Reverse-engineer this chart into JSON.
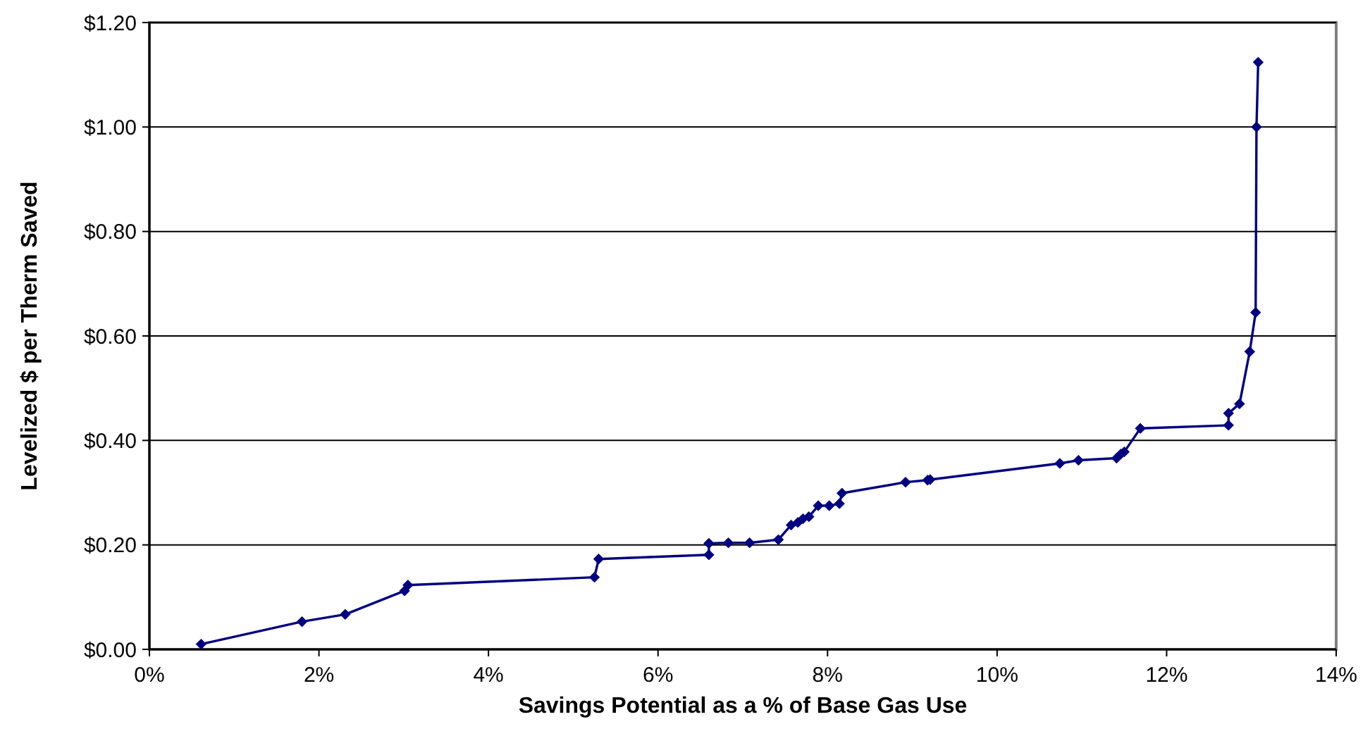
{
  "chart_data": {
    "type": "line",
    "xlabel": "Savings Potential as a % of Base Gas Use",
    "ylabel": "Levelized $ per Therm Saved",
    "x": [
      0.61,
      1.8,
      2.31,
      3.01,
      3.05,
      5.25,
      5.3,
      6.6,
      6.6,
      6.83,
      7.08,
      7.42,
      7.57,
      7.65,
      7.71,
      7.78,
      7.89,
      8.02,
      8.14,
      8.17,
      8.92,
      9.18,
      9.21,
      10.74,
      10.96,
      11.41,
      11.46,
      11.5,
      11.69,
      12.73,
      12.73,
      12.86,
      12.98,
      13.05,
      13.06,
      13.08
    ],
    "series": [
      {
        "color": "#000080",
        "values": [
          0.01,
          0.053,
          0.067,
          0.112,
          0.123,
          0.138,
          0.173,
          0.181,
          0.203,
          0.204,
          0.204,
          0.21,
          0.238,
          0.243,
          0.25,
          0.254,
          0.275,
          0.275,
          0.279,
          0.299,
          0.32,
          0.324,
          0.325,
          0.356,
          0.362,
          0.366,
          0.374,
          0.378,
          0.423,
          0.429,
          0.452,
          0.47,
          0.57,
          0.645,
          1.0,
          1.124
        ]
      }
    ],
    "xlim": [
      0,
      14
    ],
    "xticks": [
      {
        "value": 0,
        "label": "0%"
      },
      {
        "value": 2,
        "label": "2%"
      },
      {
        "value": 4,
        "label": "4%"
      },
      {
        "value": 6,
        "label": "6%"
      },
      {
        "value": 8,
        "label": "8%"
      },
      {
        "value": 10,
        "label": "10%"
      },
      {
        "value": 12,
        "label": "12%"
      },
      {
        "value": 14,
        "label": "14%"
      }
    ],
    "ylim": [
      0,
      1.2
    ],
    "yticks": [
      {
        "value": 0,
        "label": "$0.00"
      },
      {
        "value": 0.2,
        "label": "$0.20"
      },
      {
        "value": 0.4,
        "label": "$0.40"
      },
      {
        "value": 0.6,
        "label": "$0.60"
      },
      {
        "value": 0.8,
        "label": "$0.80"
      },
      {
        "value": 1.0,
        "label": "$1.00"
      },
      {
        "value": 1.2,
        "label": "$1.20"
      }
    ],
    "grid": "y",
    "marker": "diamond"
  }
}
